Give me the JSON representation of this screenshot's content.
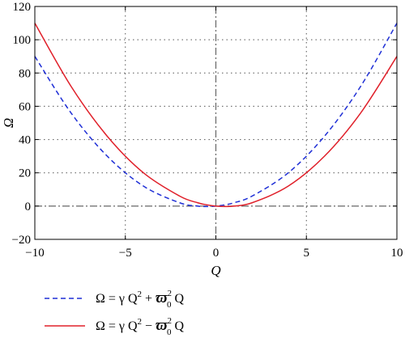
{
  "chart_data": {
    "type": "line",
    "xlabel": "Q",
    "ylabel": "Ω",
    "xlim": [
      -10,
      10
    ],
    "ylim": [
      -20,
      120
    ],
    "xticks": [
      "−10",
      "−5",
      "0",
      "5",
      "10"
    ],
    "xtick_values": [
      -10,
      -5,
      0,
      5,
      10
    ],
    "yticks": [
      "−20",
      "0",
      "20",
      "40",
      "60",
      "80",
      "100",
      "120"
    ],
    "ytick_values": [
      -20,
      0,
      20,
      40,
      60,
      80,
      100,
      120
    ],
    "grid": "dotted",
    "reference_lines": {
      "x": 0,
      "y": 0,
      "style": "dash-dot"
    },
    "legend_placement": "below-left",
    "series": [
      {
        "name": "Ω = γ Q² + ϖ₀² Q",
        "label_parts": [
          "Ω = γ Q",
          "2",
          " + ",
          "ϖ",
          "2",
          "0",
          " Q"
        ],
        "color": "#1f2fd6",
        "style": "dashed",
        "x": [
          -10,
          -8,
          -6,
          -4,
          -2,
          -1,
          -0.5,
          0,
          0.5,
          1,
          2,
          4,
          6,
          8,
          10
        ],
        "y": [
          90,
          56,
          30,
          12,
          2,
          0,
          -0.25,
          0,
          0.75,
          2,
          6,
          20,
          42,
          72,
          110
        ]
      },
      {
        "name": "Ω = γ Q² − ϖ₀² Q",
        "label_parts": [
          "Ω = γ Q",
          "2",
          " − ",
          "ϖ",
          "2",
          "0",
          " Q"
        ],
        "color": "#e0202a",
        "style": "solid",
        "x": [
          -10,
          -8,
          -6,
          -4,
          -2,
          -1,
          -0.5,
          0,
          0.5,
          1,
          2,
          4,
          6,
          8,
          10
        ],
        "y": [
          110,
          72,
          42,
          20,
          6,
          2,
          0.75,
          0,
          -0.25,
          0,
          2,
          12,
          30,
          56,
          90
        ]
      }
    ]
  }
}
